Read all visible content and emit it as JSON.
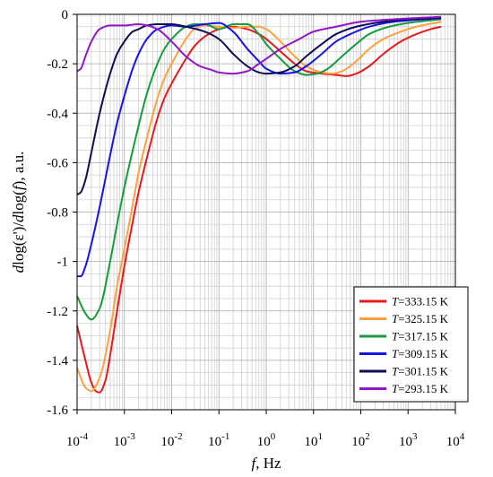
{
  "chart_data": {
    "type": "line",
    "xlabel": {
      "var": "f",
      "unit": ", Hz"
    },
    "ylabel": {
      "a": "d",
      "b": "log(ε')/",
      "c": "d",
      "d": "log(",
      "e": "f",
      "f": "), a.u."
    },
    "x_scale": "log",
    "xlim": [
      0.0001,
      10000
    ],
    "ylim": [
      -1.6,
      0
    ],
    "grid": true,
    "legend_position": "bottom-right",
    "x_ticks": [
      {
        "value": 0.0001,
        "base": "10",
        "exp": "-4"
      },
      {
        "value": 0.001,
        "base": "10",
        "exp": "-3"
      },
      {
        "value": 0.01,
        "base": "10",
        "exp": "-2"
      },
      {
        "value": 0.1,
        "base": "10",
        "exp": "-1"
      },
      {
        "value": 1,
        "base": "10",
        "exp": "0"
      },
      {
        "value": 10,
        "base": "10",
        "exp": "1"
      },
      {
        "value": 100,
        "base": "10",
        "exp": "2"
      },
      {
        "value": 1000,
        "base": "10",
        "exp": "3"
      },
      {
        "value": 10000,
        "base": "10",
        "exp": "4"
      }
    ],
    "y_ticks": [
      {
        "value": 0,
        "label": "0"
      },
      {
        "value": -0.2,
        "label": "-0.2"
      },
      {
        "value": -0.4,
        "label": "-0.4"
      },
      {
        "value": -0.6,
        "label": "-0.6"
      },
      {
        "value": -0.8,
        "label": "-0.8"
      },
      {
        "value": -1.0,
        "label": "-1"
      },
      {
        "value": -1.2,
        "label": "-1.2"
      },
      {
        "value": -1.4,
        "label": "-1.4"
      },
      {
        "value": -1.6,
        "label": "-1.6"
      }
    ],
    "series": [
      {
        "name": "T=333.15 K",
        "label_var": "T",
        "label_rest": "=333.15 K",
        "color": "#e8191c",
        "points": [
          [
            0.0001,
            -1.26
          ],
          [
            0.00015,
            -1.4
          ],
          [
            0.0002,
            -1.49
          ],
          [
            0.00025,
            -1.525
          ],
          [
            0.0003,
            -1.53
          ],
          [
            0.0004,
            -1.48
          ],
          [
            0.0005,
            -1.38
          ],
          [
            0.0007,
            -1.2
          ],
          [
            0.001,
            -1.02
          ],
          [
            0.0015,
            -0.84
          ],
          [
            0.002,
            -0.72
          ],
          [
            0.003,
            -0.58
          ],
          [
            0.005,
            -0.42
          ],
          [
            0.007,
            -0.34
          ],
          [
            0.01,
            -0.28
          ],
          [
            0.015,
            -0.22
          ],
          [
            0.02,
            -0.18
          ],
          [
            0.03,
            -0.13
          ],
          [
            0.05,
            -0.09
          ],
          [
            0.1,
            -0.06
          ],
          [
            0.2,
            -0.05
          ],
          [
            0.4,
            -0.06
          ],
          [
            0.7,
            -0.08
          ],
          [
            1,
            -0.1
          ],
          [
            2,
            -0.15
          ],
          [
            4,
            -0.2
          ],
          [
            7,
            -0.23
          ],
          [
            15,
            -0.24
          ],
          [
            30,
            -0.245
          ],
          [
            50,
            -0.25
          ],
          [
            80,
            -0.24
          ],
          [
            150,
            -0.21
          ],
          [
            300,
            -0.16
          ],
          [
            700,
            -0.11
          ],
          [
            1500,
            -0.08
          ],
          [
            3000,
            -0.06
          ],
          [
            5000,
            -0.05
          ]
        ]
      },
      {
        "name": "T=325.15 K",
        "label_var": "T",
        "label_rest": "=325.15 K",
        "color": "#ffa040",
        "points": [
          [
            0.0001,
            -1.43
          ],
          [
            0.00015,
            -1.51
          ],
          [
            0.0002,
            -1.525
          ],
          [
            0.0003,
            -1.47
          ],
          [
            0.0005,
            -1.28
          ],
          [
            0.0007,
            -1.1
          ],
          [
            0.001,
            -0.95
          ],
          [
            0.0015,
            -0.77
          ],
          [
            0.002,
            -0.64
          ],
          [
            0.003,
            -0.5
          ],
          [
            0.005,
            -0.34
          ],
          [
            0.007,
            -0.26
          ],
          [
            0.01,
            -0.2
          ],
          [
            0.02,
            -0.1
          ],
          [
            0.03,
            -0.06
          ],
          [
            0.05,
            -0.045
          ],
          [
            0.1,
            -0.05
          ],
          [
            0.2,
            -0.055
          ],
          [
            0.4,
            -0.05
          ],
          [
            0.7,
            -0.05
          ],
          [
            1,
            -0.06
          ],
          [
            2,
            -0.11
          ],
          [
            4,
            -0.17
          ],
          [
            7,
            -0.21
          ],
          [
            15,
            -0.235
          ],
          [
            25,
            -0.24
          ],
          [
            40,
            -0.23
          ],
          [
            80,
            -0.19
          ],
          [
            150,
            -0.14
          ],
          [
            300,
            -0.1
          ],
          [
            700,
            -0.07
          ],
          [
            1500,
            -0.05
          ],
          [
            5000,
            -0.03
          ]
        ]
      },
      {
        "name": "T=317.15 K",
        "label_var": "T",
        "label_rest": "=317.15 K",
        "color": "#169c3c",
        "points": [
          [
            0.0001,
            -1.14
          ],
          [
            0.00015,
            -1.21
          ],
          [
            0.0002,
            -1.235
          ],
          [
            0.0003,
            -1.19
          ],
          [
            0.0005,
            -1.0
          ],
          [
            0.0007,
            -0.85
          ],
          [
            0.001,
            -0.7
          ],
          [
            0.0015,
            -0.55
          ],
          [
            0.002,
            -0.45
          ],
          [
            0.003,
            -0.32
          ],
          [
            0.005,
            -0.2
          ],
          [
            0.007,
            -0.14
          ],
          [
            0.01,
            -0.1
          ],
          [
            0.02,
            -0.05
          ],
          [
            0.03,
            -0.04
          ],
          [
            0.05,
            -0.04
          ],
          [
            0.1,
            -0.06
          ],
          [
            0.2,
            -0.04
          ],
          [
            0.4,
            -0.04
          ],
          [
            0.7,
            -0.08
          ],
          [
            1,
            -0.12
          ],
          [
            2,
            -0.18
          ],
          [
            4,
            -0.23
          ],
          [
            7,
            -0.245
          ],
          [
            12,
            -0.24
          ],
          [
            20,
            -0.22
          ],
          [
            40,
            -0.17
          ],
          [
            80,
            -0.12
          ],
          [
            150,
            -0.08
          ],
          [
            400,
            -0.05
          ],
          [
            1000,
            -0.035
          ],
          [
            5000,
            -0.02
          ]
        ]
      },
      {
        "name": "T=309.15 K",
        "label_var": "T",
        "label_rest": "=309.15 K",
        "color": "#1414e8",
        "points": [
          [
            0.0001,
            -1.06
          ],
          [
            0.00012,
            -1.06
          ],
          [
            0.00015,
            -1.02
          ],
          [
            0.0002,
            -0.93
          ],
          [
            0.0003,
            -0.78
          ],
          [
            0.0005,
            -0.57
          ],
          [
            0.0007,
            -0.44
          ],
          [
            0.001,
            -0.33
          ],
          [
            0.0015,
            -0.22
          ],
          [
            0.002,
            -0.16
          ],
          [
            0.003,
            -0.1
          ],
          [
            0.005,
            -0.06
          ],
          [
            0.01,
            -0.045
          ],
          [
            0.02,
            -0.05
          ],
          [
            0.05,
            -0.04
          ],
          [
            0.1,
            -0.035
          ],
          [
            0.2,
            -0.07
          ],
          [
            0.4,
            -0.14
          ],
          [
            0.7,
            -0.19
          ],
          [
            1,
            -0.22
          ],
          [
            2,
            -0.24
          ],
          [
            4,
            -0.235
          ],
          [
            7,
            -0.21
          ],
          [
            15,
            -0.16
          ],
          [
            30,
            -0.11
          ],
          [
            60,
            -0.08
          ],
          [
            150,
            -0.05
          ],
          [
            500,
            -0.03
          ],
          [
            5000,
            -0.015
          ]
        ]
      },
      {
        "name": "T=301.15 K",
        "label_var": "T",
        "label_rest": "=301.15 K",
        "color": "#0d0d58",
        "points": [
          [
            0.0001,
            -0.73
          ],
          [
            0.00012,
            -0.72
          ],
          [
            0.00015,
            -0.67
          ],
          [
            0.0002,
            -0.56
          ],
          [
            0.0003,
            -0.4
          ],
          [
            0.0005,
            -0.24
          ],
          [
            0.0007,
            -0.16
          ],
          [
            0.001,
            -0.11
          ],
          [
            0.0015,
            -0.07
          ],
          [
            0.002,
            -0.06
          ],
          [
            0.003,
            -0.045
          ],
          [
            0.005,
            -0.04
          ],
          [
            0.01,
            -0.04
          ],
          [
            0.02,
            -0.05
          ],
          [
            0.05,
            -0.07
          ],
          [
            0.1,
            -0.1
          ],
          [
            0.2,
            -0.16
          ],
          [
            0.4,
            -0.21
          ],
          [
            0.7,
            -0.235
          ],
          [
            1,
            -0.24
          ],
          [
            2,
            -0.235
          ],
          [
            4,
            -0.21
          ],
          [
            7,
            -0.17
          ],
          [
            15,
            -0.12
          ],
          [
            30,
            -0.08
          ],
          [
            80,
            -0.05
          ],
          [
            300,
            -0.03
          ],
          [
            1000,
            -0.02
          ],
          [
            5000,
            -0.015
          ]
        ]
      },
      {
        "name": "T=293.15 K",
        "label_var": "T",
        "label_rest": "=293.15 K",
        "color": "#9216c8",
        "points": [
          [
            0.0001,
            -0.23
          ],
          [
            0.00012,
            -0.22
          ],
          [
            0.00015,
            -0.17
          ],
          [
            0.0002,
            -0.11
          ],
          [
            0.0003,
            -0.06
          ],
          [
            0.0005,
            -0.045
          ],
          [
            0.001,
            -0.045
          ],
          [
            0.002,
            -0.04
          ],
          [
            0.003,
            -0.045
          ],
          [
            0.005,
            -0.06
          ],
          [
            0.01,
            -0.11
          ],
          [
            0.02,
            -0.17
          ],
          [
            0.04,
            -0.21
          ],
          [
            0.07,
            -0.225
          ],
          [
            0.1,
            -0.235
          ],
          [
            0.2,
            -0.24
          ],
          [
            0.4,
            -0.23
          ],
          [
            0.7,
            -0.2
          ],
          [
            1,
            -0.18
          ],
          [
            2,
            -0.14
          ],
          [
            5,
            -0.1
          ],
          [
            10,
            -0.07
          ],
          [
            30,
            -0.05
          ],
          [
            100,
            -0.03
          ],
          [
            500,
            -0.02
          ],
          [
            5000,
            -0.01
          ]
        ]
      }
    ]
  }
}
